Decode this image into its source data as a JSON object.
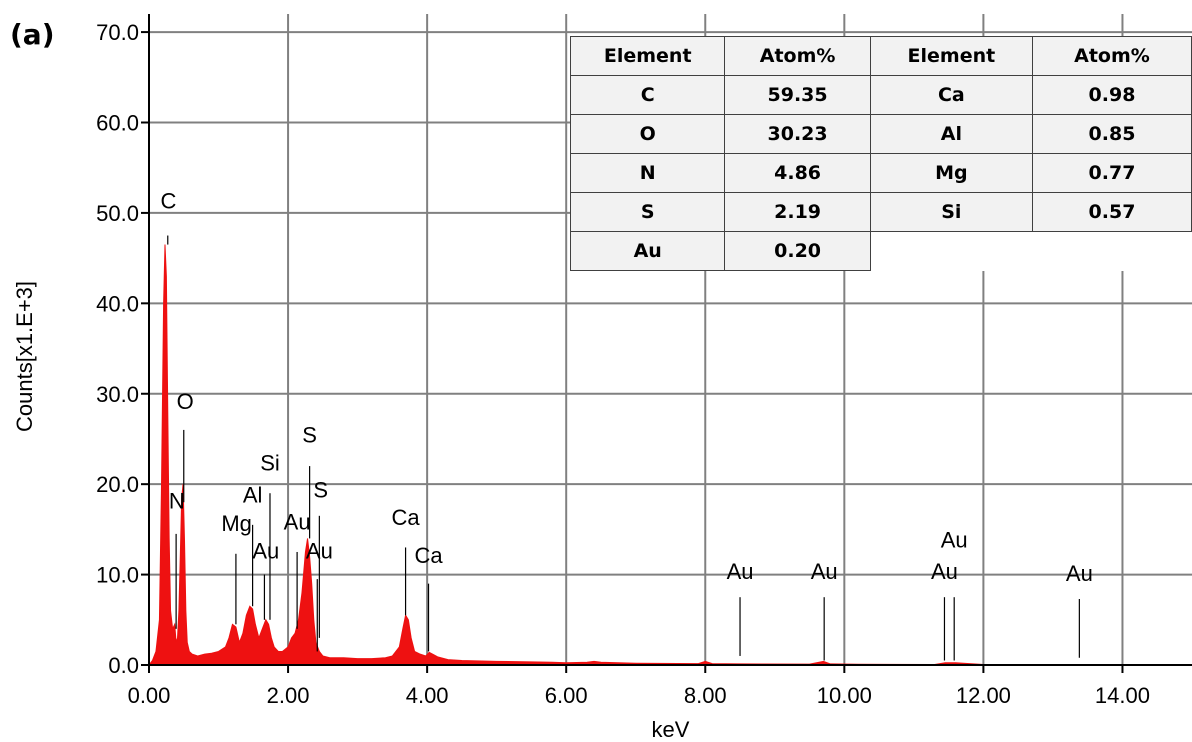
{
  "figure": {
    "panel_label": "(a)"
  },
  "chart_data": {
    "type": "area",
    "xlabel": "keV",
    "ylabel": "Counts[x1.E+3]",
    "xlim": [
      0,
      15.0
    ],
    "ylim": [
      0,
      72.0
    ],
    "x_ticks": [
      "0.00",
      "2.00",
      "4.00",
      "6.00",
      "8.00",
      "10.00",
      "12.00",
      "14.00"
    ],
    "y_ticks": [
      "0.0",
      "10.0",
      "20.0",
      "30.0",
      "40.0",
      "50.0",
      "60.0",
      "70.0"
    ],
    "grid": true,
    "series_color": "#ee1111",
    "spectrum": {
      "x": [
        0.0,
        0.05,
        0.1,
        0.15,
        0.18,
        0.21,
        0.23,
        0.25,
        0.27,
        0.29,
        0.31,
        0.34,
        0.37,
        0.39,
        0.41,
        0.43,
        0.45,
        0.47,
        0.49,
        0.51,
        0.53,
        0.55,
        0.58,
        0.62,
        0.7,
        0.8,
        0.9,
        1.0,
        1.1,
        1.15,
        1.2,
        1.25,
        1.3,
        1.35,
        1.4,
        1.45,
        1.49,
        1.53,
        1.58,
        1.63,
        1.68,
        1.72,
        1.76,
        1.8,
        1.86,
        1.92,
        2.0,
        2.05,
        2.1,
        2.15,
        2.2,
        2.25,
        2.28,
        2.31,
        2.34,
        2.37,
        2.4,
        2.45,
        2.5,
        2.6,
        2.8,
        3.0,
        3.2,
        3.4,
        3.5,
        3.6,
        3.65,
        3.69,
        3.73,
        3.77,
        3.82,
        3.9,
        3.98,
        4.03,
        4.08,
        4.15,
        4.3,
        4.5,
        5.0,
        5.5,
        5.8,
        6.0,
        6.3,
        6.4,
        6.5,
        7.0,
        7.9,
        8.0,
        8.1,
        8.5,
        9.5,
        9.7,
        9.8,
        10.2,
        11.3,
        11.45,
        11.6,
        12.0,
        13.0,
        14.0,
        15.0
      ],
      "y": [
        0,
        0.5,
        1.5,
        5,
        20,
        40,
        46.5,
        43,
        28,
        14,
        6,
        4,
        4.5,
        2.5,
        3,
        6,
        12,
        18.5,
        20,
        14,
        6,
        2.5,
        1.5,
        1.2,
        1,
        1.2,
        1.3,
        1.5,
        2,
        3,
        4.5,
        4.2,
        2.5,
        3.5,
        5.5,
        6.5,
        6.2,
        4.5,
        3,
        4,
        5,
        4.5,
        3,
        2,
        1.5,
        1.5,
        2,
        3,
        3.5,
        5,
        8,
        12.5,
        14,
        12,
        9,
        5,
        2.5,
        1.5,
        1,
        0.8,
        0.8,
        0.7,
        0.7,
        0.8,
        1,
        2,
        4,
        5.5,
        5,
        3,
        1.5,
        1.2,
        1,
        1.4,
        1.2,
        0.9,
        0.6,
        0.5,
        0.4,
        0.35,
        0.3,
        0.25,
        0.3,
        0.4,
        0.3,
        0.2,
        0.15,
        0.4,
        0.15,
        0.12,
        0.1,
        0.4,
        0.12,
        0.08,
        0.06,
        0.25,
        0.25,
        0.05,
        0.04,
        0.03,
        0.03
      ]
    },
    "peak_labels": [
      {
        "text": "C",
        "x": 0.28,
        "y": 50.5,
        "line_x": 0.27,
        "line_top": 47.5,
        "line_bottom": 46.5
      },
      {
        "text": "O",
        "x": 0.52,
        "y": 28.3,
        "line_x": 0.5,
        "line_top": 26.0,
        "line_bottom": 18.0
      },
      {
        "text": "N",
        "x": 0.4,
        "y": 17.3,
        "line_x": 0.39,
        "line_top": 14.5,
        "line_bottom": 4.0
      },
      {
        "text": "Mg",
        "x": 1.26,
        "y": 14.8,
        "line_x": 1.25,
        "line_top": 12.3,
        "line_bottom": 4.5
      },
      {
        "text": "Al",
        "x": 1.49,
        "y": 18.0,
        "line_x": 1.49,
        "line_top": 15.5,
        "line_bottom": 6.5
      },
      {
        "text": "Si",
        "x": 1.74,
        "y": 21.5,
        "line_x": 1.74,
        "line_top": 19.0,
        "line_bottom": 5.0
      },
      {
        "text": "Au",
        "x": 1.68,
        "y": 11.8,
        "line_x": 1.66,
        "line_top": 10.0,
        "line_bottom": 5.0
      },
      {
        "text": "Au",
        "x": 2.13,
        "y": 15.0,
        "line_x": 2.13,
        "line_top": 12.5,
        "line_bottom": 4.0
      },
      {
        "text": "S",
        "x": 2.31,
        "y": 24.6,
        "line_x": 2.31,
        "line_top": 22.0,
        "line_bottom": 14.0
      },
      {
        "text": "S",
        "x": 2.47,
        "y": 18.5,
        "line_x": 2.45,
        "line_top": 16.5,
        "line_bottom": 3.0
      },
      {
        "text": "Au",
        "x": 2.45,
        "y": 11.8,
        "line_x": 2.42,
        "line_top": 9.5,
        "line_bottom": 1.5
      },
      {
        "text": "Ca",
        "x": 3.69,
        "y": 15.5,
        "line_x": 3.69,
        "line_top": 13.0,
        "line_bottom": 5.5
      },
      {
        "text": "Ca",
        "x": 4.02,
        "y": 11.3,
        "line_x": 4.02,
        "line_top": 9.0,
        "line_bottom": 1.5
      },
      {
        "text": "Au",
        "x": 8.5,
        "y": 9.5,
        "line_x": 8.5,
        "line_top": 7.5,
        "line_bottom": 1.0
      },
      {
        "text": "Au",
        "x": 9.71,
        "y": 9.5,
        "line_x": 9.71,
        "line_top": 7.5,
        "line_bottom": 0.5
      },
      {
        "text": "Au",
        "x": 11.58,
        "y": 13.0,
        "line_x": 11.58,
        "line_top": 7.5,
        "line_bottom": 0.5
      },
      {
        "text": "Au",
        "x": 11.44,
        "y": 9.5,
        "line_x": 11.44,
        "line_top": 7.5,
        "line_bottom": 0.5
      },
      {
        "text": "Au",
        "x": 13.38,
        "y": 9.3,
        "line_x": 13.38,
        "line_top": 7.3,
        "line_bottom": 0.8
      }
    ]
  },
  "composition_table": {
    "headers": [
      "Element",
      "Atom%",
      "Element",
      "Atom%"
    ],
    "rows": [
      [
        "C",
        "59.35",
        "Ca",
        "0.98"
      ],
      [
        "O",
        "30.23",
        "Al",
        "0.85"
      ],
      [
        "N",
        "4.86",
        "Mg",
        "0.77"
      ],
      [
        "S",
        "2.19",
        "Si",
        "0.57"
      ],
      [
        "Au",
        "0.20",
        "",
        ""
      ]
    ]
  }
}
